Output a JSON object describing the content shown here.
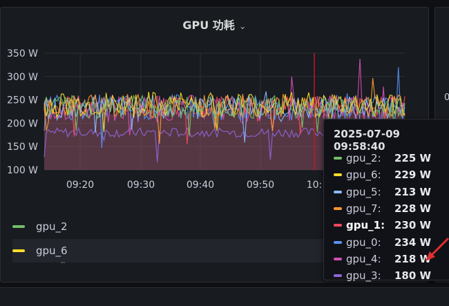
{
  "panel": {
    "title": "GPU 功耗",
    "title_chevron": "⌄",
    "right_partial": "0"
  },
  "chart_data": {
    "type": "line",
    "title": "GPU 功耗",
    "y_ticks": [
      "350 W",
      "300 W",
      "250 W",
      "200 W",
      "150 W",
      "100 W"
    ],
    "ylim": [
      100,
      350
    ],
    "x_ticks": [
      "09:20",
      "09:30",
      "09:40",
      "09:50",
      "10:"
    ],
    "grid": true,
    "cursor_time": "2025-07-09 09:58:40",
    "series": [
      {
        "name": "gpu_2",
        "color": "#73bf69",
        "base": 235,
        "amp": 25
      },
      {
        "name": "gpu_6",
        "color": "#fade2a",
        "base": 240,
        "amp": 28
      },
      {
        "name": "gpu_5",
        "color": "#8ab8ff",
        "base": 232,
        "amp": 25
      },
      {
        "name": "gpu_7",
        "color": "#ff9830",
        "base": 238,
        "amp": 25
      },
      {
        "name": "gpu_1",
        "color": "#f2495c",
        "base": 236,
        "amp": 22
      },
      {
        "name": "gpu_0",
        "color": "#5794f2",
        "base": 234,
        "amp": 28
      },
      {
        "name": "gpu_4",
        "color": "#d44fb5",
        "base": 232,
        "amp": 30
      },
      {
        "name": "gpu_3",
        "color": "#8f66d9",
        "base": 180,
        "amp": 10
      }
    ]
  },
  "legend": [
    {
      "name": "gpu_2",
      "color": "#73bf69"
    },
    {
      "name": "gpu_6",
      "color": "#fade2a"
    }
  ],
  "tooltip": {
    "timestamp": "2025-07-09 09:58:40",
    "rows": [
      {
        "name": "gpu_2:",
        "value": "225 W",
        "color": "#73bf69"
      },
      {
        "name": "gpu_6:",
        "value": "229 W",
        "color": "#fade2a"
      },
      {
        "name": "gpu_5:",
        "value": "213 W",
        "color": "#8ab8ff"
      },
      {
        "name": "gpu_7:",
        "value": "228 W",
        "color": "#ff9830"
      },
      {
        "name": "gpu_1:",
        "value": "230 W",
        "color": "#f2495c"
      },
      {
        "name": "gpu_0:",
        "value": "234 W",
        "color": "#5794f2"
      },
      {
        "name": "gpu_4:",
        "value": "218 W",
        "color": "#d44fb5"
      },
      {
        "name": "gpu_3:",
        "value": "180 W",
        "color": "#8f66d9"
      }
    ]
  },
  "annotation": {
    "arrow_color": "#e02f2f"
  }
}
